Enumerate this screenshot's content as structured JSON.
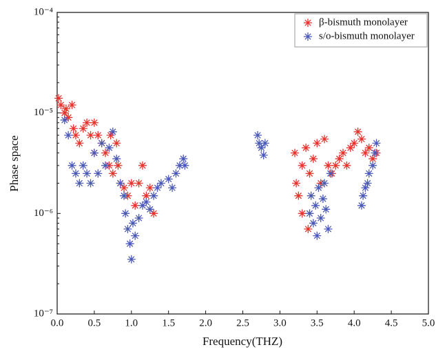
{
  "chart_data": {
    "type": "scatter",
    "log_y": true,
    "legend_position": "upper right",
    "x_label": "Frequency(THZ)",
    "y_label": "Phase space",
    "xlim": [
      0,
      5
    ],
    "ylim": [
      1e-07,
      0.0001
    ],
    "xticks": [
      {
        "value": 0,
        "label": "0.0"
      },
      0.5,
      {
        "value": 1,
        "label": "1.0"
      },
      1.5,
      {
        "value": 2,
        "label": "2.0"
      },
      2.5,
      {
        "value": 3,
        "label": "3.0"
      },
      3.5,
      {
        "value": 4,
        "label": "4.0"
      },
      4.5,
      {
        "value": 5,
        "label": "5.0"
      }
    ],
    "yticks": [
      {
        "value": 1e-07,
        "label": "10⁻⁷"
      },
      {
        "value": 1e-06,
        "label": "10⁻⁶"
      },
      {
        "value": 1e-05,
        "label": "10⁻⁵"
      },
      {
        "value": 0.0001,
        "label": "10⁻⁴"
      }
    ],
    "series": [
      {
        "name": "β-bismuth monolayer",
        "color": "#e8322b",
        "x": [
          0.02,
          0.05,
          0.1,
          0.12,
          0.15,
          0.2,
          0.22,
          0.25,
          0.3,
          0.35,
          0.4,
          0.45,
          0.5,
          0.5,
          0.55,
          0.6,
          0.65,
          0.7,
          0.72,
          0.75,
          0.8,
          0.82,
          0.85,
          0.9,
          0.95,
          1.0,
          1.05,
          1.1,
          1.15,
          1.2,
          1.25,
          1.3,
          3.2,
          3.22,
          3.25,
          3.3,
          3.3,
          3.35,
          3.38,
          3.4,
          3.45,
          3.5,
          3.55,
          3.6,
          3.65,
          3.7,
          3.75,
          3.8,
          3.85,
          3.9,
          3.95,
          4.0,
          4.05,
          4.1,
          4.15,
          4.2,
          4.25,
          4.3
        ],
        "values": [
          1.4e-05,
          1.2e-05,
          1e-05,
          1.1e-05,
          9e-06,
          1.2e-05,
          7e-06,
          6e-06,
          5e-06,
          7e-06,
          8e-06,
          6e-06,
          8e-06,
          4e-06,
          6e-06,
          5e-06,
          4e-06,
          3e-06,
          6e-06,
          2.5e-06,
          5e-06,
          3e-06,
          2e-06,
          1.8e-06,
          1.5e-06,
          2e-06,
          1.2e-06,
          2e-06,
          3e-06,
          1.5e-06,
          1.8e-06,
          1e-06,
          4e-06,
          2e-06,
          1.5e-06,
          3e-06,
          1e-06,
          4.5e-06,
          7e-07,
          2.5e-06,
          3.5e-06,
          5e-06,
          2e-06,
          5.5e-06,
          3e-06,
          2.5e-06,
          3e-06,
          3.5e-06,
          4e-06,
          3e-06,
          4.5e-06,
          5e-06,
          6.5e-06,
          5.5e-06,
          4e-06,
          4.5e-06,
          3.5e-06,
          4e-06
        ]
      },
      {
        "name": "s/o-bismuth monolayer",
        "color": "#4a58b6",
        "x": [
          0.1,
          0.15,
          0.2,
          0.25,
          0.3,
          0.35,
          0.4,
          0.45,
          0.5,
          0.55,
          0.6,
          0.65,
          0.7,
          0.75,
          0.8,
          0.85,
          0.9,
          0.92,
          0.95,
          0.98,
          1.0,
          1.02,
          1.05,
          1.1,
          1.15,
          1.2,
          1.25,
          1.3,
          1.35,
          1.4,
          1.5,
          1.55,
          1.6,
          1.65,
          1.7,
          1.72,
          2.7,
          2.72,
          2.75,
          2.78,
          2.8,
          3.4,
          3.42,
          3.45,
          3.48,
          3.5,
          3.52,
          3.55,
          3.58,
          3.6,
          3.62,
          3.65,
          3.68,
          4.1,
          4.12,
          4.15,
          4.18,
          4.2,
          4.25,
          4.28,
          4.3
        ],
        "values": [
          8.5e-06,
          6e-06,
          3e-06,
          2.5e-06,
          2e-06,
          3e-06,
          2.5e-06,
          2e-06,
          4e-06,
          2.5e-06,
          5e-06,
          3e-06,
          4.5e-06,
          6.5e-06,
          3.5e-06,
          2e-06,
          1.5e-06,
          1e-06,
          7e-07,
          5e-07,
          3.5e-07,
          8e-07,
          6e-07,
          9e-07,
          1.2e-06,
          1.3e-06,
          1.1e-06,
          1.5e-06,
          1.8e-06,
          2e-06,
          2.2e-06,
          1.8e-06,
          2.5e-06,
          3e-06,
          3.5e-06,
          3e-06,
          6e-06,
          5e-06,
          4.5e-06,
          3.8e-06,
          5e-06,
          1e-06,
          1.5e-06,
          8e-07,
          1.2e-06,
          6e-07,
          1.8e-06,
          9e-07,
          1.4e-06,
          2e-06,
          1.1e-06,
          7e-07,
          2.5e-06,
          1.2e-06,
          1.5e-06,
          1.8e-06,
          2e-06,
          2.5e-06,
          3e-06,
          4e-06,
          5e-06
        ]
      }
    ]
  }
}
